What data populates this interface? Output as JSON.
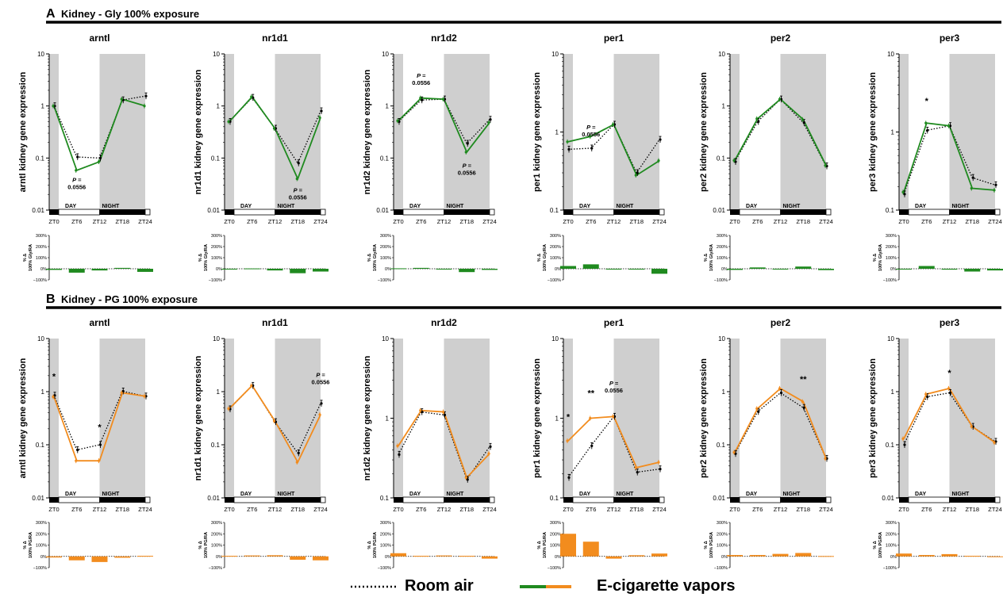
{
  "panels": [
    {
      "letter": "A",
      "title": "Kidney - Gly 100% exposure",
      "color": "#1f8a1f",
      "pct_label_line1": "% Δ",
      "pct_label_line2": "100% Gly/RA"
    },
    {
      "letter": "B",
      "title": "Kidney - PG 100% exposure",
      "color": "#f28c1e",
      "pct_label_line1": "% Δ",
      "pct_label_line2": "100% PG/RA"
    }
  ],
  "day_label": "DAY",
  "night_label": "NIGHT",
  "legend": {
    "room_air": "Room air",
    "vapors": "E-cigarette vapors"
  },
  "pct_ticks": [
    "300%",
    "200%",
    "100%",
    "0%",
    "−100%"
  ],
  "chart_data": [
    {
      "type": "line",
      "panel": "A",
      "gene": "arntl",
      "ylabel": "arntl kidney gene expression",
      "scale": "log",
      "ylim": [
        0.01,
        10
      ],
      "yticks": [
        "10",
        "1",
        "0.1",
        "0.01"
      ],
      "x": [
        "ZT0",
        "ZT6",
        "ZT12",
        "ZT18",
        "ZT24"
      ],
      "series": [
        {
          "name": "Room air",
          "values": [
            1.0,
            0.105,
            0.1,
            1.3,
            1.55
          ]
        },
        {
          "name": "E-cigarette vapors",
          "values": [
            1.0,
            0.058,
            0.085,
            1.35,
            1.0
          ]
        }
      ],
      "annotations": [
        {
          "x": "ZT6",
          "y": 0.035,
          "text": [
            "P =",
            "0.0556"
          ]
        }
      ],
      "pct_change": [
        -10,
        -35,
        -15,
        8,
        -28
      ]
    },
    {
      "type": "line",
      "panel": "A",
      "gene": "nr1d1",
      "ylabel": "nr1d1 kidney gene expression",
      "scale": "log",
      "ylim": [
        0.01,
        10
      ],
      "yticks": [
        "10",
        "1",
        "0.1",
        "0.01"
      ],
      "x": [
        "ZT0",
        "ZT6",
        "ZT12",
        "ZT18",
        "ZT24"
      ],
      "series": [
        {
          "name": "Room air",
          "values": [
            0.5,
            1.45,
            0.37,
            0.08,
            0.8
          ]
        },
        {
          "name": "E-cigarette vapors",
          "values": [
            0.5,
            1.5,
            0.37,
            0.04,
            0.6
          ]
        }
      ],
      "annotations": [
        {
          "x": "ZT18",
          "y": 0.022,
          "text": [
            "P =",
            "0.0556"
          ]
        }
      ],
      "pct_change": [
        -3,
        3,
        -15,
        -40,
        -25
      ]
    },
    {
      "type": "line",
      "panel": "A",
      "gene": "nr1d2",
      "ylabel": "nr1d2 kidney gene expression",
      "scale": "log",
      "ylim": [
        0.01,
        10
      ],
      "yticks": [
        "10",
        "1",
        "0.1",
        "0.01"
      ],
      "x": [
        "ZT0",
        "ZT6",
        "ZT12",
        "ZT18",
        "ZT24"
      ],
      "series": [
        {
          "name": "Room air",
          "values": [
            0.5,
            1.3,
            1.35,
            0.19,
            0.55
          ]
        },
        {
          "name": "E-cigarette vapors",
          "values": [
            0.52,
            1.42,
            1.35,
            0.13,
            0.48
          ]
        }
      ],
      "annotations": [
        {
          "x": "ZT6",
          "y": 3.5,
          "text": [
            "P =",
            "0.0556"
          ]
        },
        {
          "x": "ZT18",
          "y": 0.065,
          "text": [
            "P =",
            "0.0556"
          ]
        }
      ],
      "pct_change": [
        4,
        8,
        -5,
        -30,
        -10
      ]
    },
    {
      "type": "line",
      "panel": "A",
      "gene": "per1",
      "ylabel": "per1 kidney gene expression",
      "scale": "log",
      "ylim": [
        0.1,
        10
      ],
      "yticks": [
        "10",
        "1",
        "0.1"
      ],
      "x": [
        "ZT0",
        "ZT6",
        "ZT12",
        "ZT18",
        "ZT24"
      ],
      "series": [
        {
          "name": "Room air",
          "values": [
            0.6,
            0.62,
            1.25,
            0.3,
            0.8
          ]
        },
        {
          "name": "E-cigarette vapors",
          "values": [
            0.75,
            0.88,
            1.25,
            0.28,
            0.43
          ]
        }
      ],
      "annotations": [
        {
          "x": "ZT6",
          "y": 1.08,
          "text": [
            "P =",
            "0.0556"
          ]
        }
      ],
      "pct_change": [
        25,
        40,
        -3,
        -6,
        -45
      ]
    },
    {
      "type": "line",
      "panel": "A",
      "gene": "per2",
      "ylabel": "per2 kidney gene expression",
      "scale": "log",
      "ylim": [
        0.01,
        10
      ],
      "yticks": [
        "10",
        "1",
        "0.1",
        "0.01"
      ],
      "x": [
        "ZT0",
        "ZT6",
        "ZT12",
        "ZT18",
        "ZT24"
      ],
      "series": [
        {
          "name": "Room air",
          "values": [
            0.085,
            0.5,
            1.35,
            0.48,
            0.07
          ]
        },
        {
          "name": "E-cigarette vapors",
          "values": [
            0.09,
            0.57,
            1.35,
            0.55,
            0.072
          ]
        }
      ],
      "annotations": [],
      "pct_change": [
        -10,
        12,
        -5,
        20,
        -12
      ]
    },
    {
      "type": "line",
      "panel": "A",
      "gene": "per3",
      "ylabel": "per3 kidney gene expression",
      "scale": "log",
      "ylim": [
        0.1,
        10
      ],
      "yticks": [
        "10",
        "1",
        "0.1"
      ],
      "x": [
        "ZT0",
        "ZT6",
        "ZT12",
        "ZT18",
        "ZT24"
      ],
      "series": [
        {
          "name": "Room air",
          "values": [
            0.16,
            1.05,
            1.2,
            0.26,
            0.21
          ]
        },
        {
          "name": "E-cigarette vapors",
          "values": [
            0.17,
            1.3,
            1.2,
            0.19,
            0.18
          ]
        }
      ],
      "annotations": [
        {
          "x": "ZT6",
          "y": 2.3,
          "text": [
            "*"
          ]
        }
      ],
      "pct_change": [
        -3,
        25,
        -8,
        -25,
        -15
      ]
    },
    {
      "type": "line",
      "panel": "B",
      "gene": "arntl",
      "ylabel": "arntl kidney gene expression",
      "scale": "log",
      "ylim": [
        0.01,
        10
      ],
      "yticks": [
        "10",
        "1",
        "0.1",
        "0.01"
      ],
      "x": [
        "ZT0",
        "ZT6",
        "ZT12",
        "ZT18",
        "ZT24"
      ],
      "series": [
        {
          "name": "Room air",
          "values": [
            0.85,
            0.08,
            0.1,
            1.02,
            0.82
          ]
        },
        {
          "name": "E-cigarette vapors",
          "values": [
            0.8,
            0.05,
            0.05,
            0.95,
            0.82
          ]
        }
      ],
      "annotations": [
        {
          "x": "ZT0",
          "y": 1.7,
          "text": [
            "*"
          ]
        },
        {
          "x": "ZT12",
          "y": 0.19,
          "text": [
            "*"
          ]
        }
      ],
      "pct_change": [
        -10,
        -35,
        -50,
        -12,
        5
      ]
    },
    {
      "type": "line",
      "panel": "B",
      "gene": "nr1d1",
      "ylabel": "nr1d1 kidney gene expression",
      "scale": "log",
      "ylim": [
        0.01,
        10
      ],
      "yticks": [
        "10",
        "1",
        "0.1",
        "0.01"
      ],
      "x": [
        "ZT0",
        "ZT6",
        "ZT12",
        "ZT18",
        "ZT24"
      ],
      "series": [
        {
          "name": "Room air",
          "values": [
            0.47,
            1.3,
            0.27,
            0.07,
            0.6
          ]
        },
        {
          "name": "E-cigarette vapors",
          "values": [
            0.48,
            1.3,
            0.28,
            0.047,
            0.37
          ]
        }
      ],
      "annotations": [
        {
          "x": "ZT24",
          "y": 1.9,
          "text": [
            "P =",
            "0.0556"
          ]
        }
      ],
      "pct_change": [
        5,
        8,
        10,
        -30,
        -35
      ]
    },
    {
      "type": "line",
      "panel": "B",
      "gene": "nr1d2",
      "ylabel": "nr1d2 kidney gene expression",
      "scale": "log",
      "ylim": [
        0.1,
        10
      ],
      "yticks": [
        "10",
        "1",
        "0.1"
      ],
      "x": [
        "ZT0",
        "ZT6",
        "ZT12",
        "ZT18",
        "ZT24"
      ],
      "series": [
        {
          "name": "Room air",
          "values": [
            0.35,
            1.2,
            1.1,
            0.17,
            0.44
          ]
        },
        {
          "name": "E-cigarette vapors",
          "values": [
            0.45,
            1.25,
            1.2,
            0.18,
            0.36
          ]
        }
      ],
      "annotations": [],
      "pct_change": [
        28,
        5,
        8,
        5,
        -20
      ]
    },
    {
      "type": "line",
      "panel": "B",
      "gene": "per1",
      "ylabel": "per1 kidney gene expression",
      "scale": "log",
      "ylim": [
        0.1,
        10
      ],
      "yticks": [
        "10",
        "1",
        "0.1"
      ],
      "x": [
        "ZT0",
        "ZT6",
        "ZT12",
        "ZT18",
        "ZT24"
      ],
      "series": [
        {
          "name": "Room air",
          "values": [
            0.18,
            0.45,
            1.05,
            0.21,
            0.23
          ]
        },
        {
          "name": "E-cigarette vapors",
          "values": [
            0.52,
            1.0,
            1.05,
            0.24,
            0.28
          ]
        }
      ],
      "annotations": [
        {
          "x": "ZT0",
          "y": 0.95,
          "text": [
            "*"
          ]
        },
        {
          "x": "ZT6",
          "y": 1.9,
          "text": [
            "**"
          ]
        },
        {
          "x": "ZT12",
          "y": 2.6,
          "text": [
            "P =",
            "0.0556"
          ]
        }
      ],
      "pct_change": [
        200,
        130,
        -20,
        10,
        25
      ]
    },
    {
      "type": "line",
      "panel": "B",
      "gene": "per2",
      "ylabel": "per2 kidney gene expression",
      "scale": "log",
      "ylim": [
        0.01,
        10
      ],
      "yticks": [
        "10",
        "1",
        "0.1",
        "0.01"
      ],
      "x": [
        "ZT0",
        "ZT6",
        "ZT12",
        "ZT18",
        "ZT24"
      ],
      "series": [
        {
          "name": "Room air",
          "values": [
            0.068,
            0.42,
            0.95,
            0.5,
            0.055
          ]
        },
        {
          "name": "E-cigarette vapors",
          "values": [
            0.072,
            0.48,
            1.15,
            0.65,
            0.055
          ]
        }
      ],
      "annotations": [
        {
          "x": "ZT18",
          "y": 1.5,
          "text": [
            "**"
          ]
        }
      ],
      "pct_change": [
        12,
        12,
        22,
        30,
        3
      ]
    },
    {
      "type": "line",
      "panel": "B",
      "gene": "per3",
      "ylabel": "per3 kidney gene expression",
      "scale": "log",
      "ylim": [
        0.01,
        10
      ],
      "yticks": [
        "10",
        "1",
        "0.1",
        "0.01"
      ],
      "x": [
        "ZT0",
        "ZT6",
        "ZT12",
        "ZT18",
        "ZT24"
      ],
      "series": [
        {
          "name": "Room air",
          "values": [
            0.1,
            0.8,
            0.95,
            0.22,
            0.115
          ]
        },
        {
          "name": "E-cigarette vapors",
          "values": [
            0.13,
            0.9,
            1.15,
            0.22,
            0.11
          ]
        }
      ],
      "annotations": [
        {
          "x": "ZT12",
          "y": 2.0,
          "text": [
            "*"
          ]
        }
      ],
      "pct_change": [
        25,
        12,
        20,
        5,
        -5
      ]
    }
  ]
}
